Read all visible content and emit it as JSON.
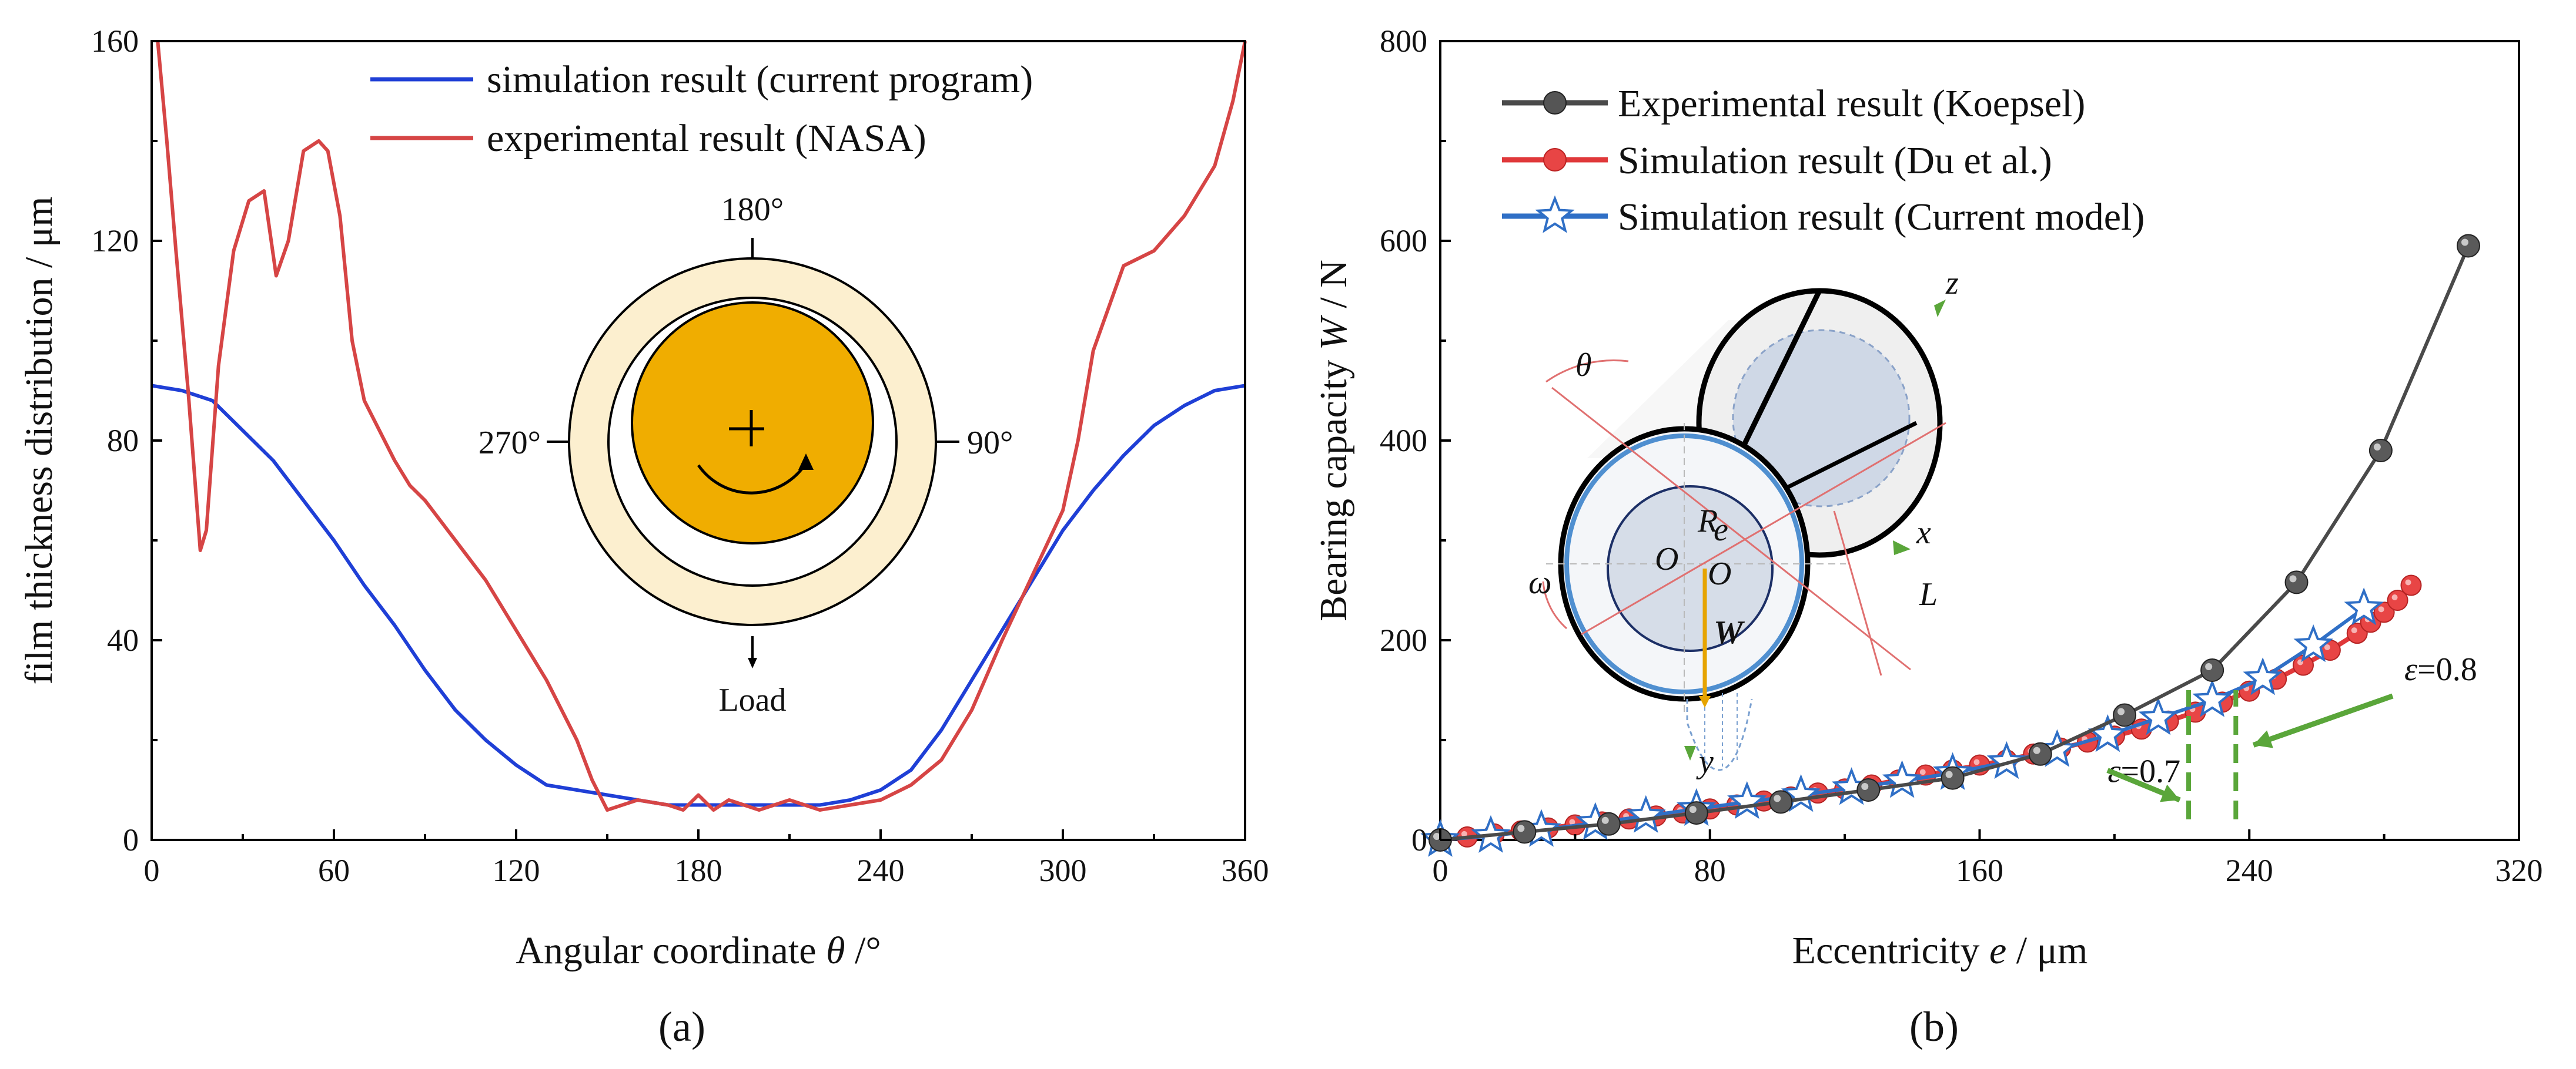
{
  "chart_data": [
    {
      "type": "line",
      "panel_label": "(a)",
      "xlabel_prefix": "Angular coordinate ",
      "xlabel_symbol": "θ",
      "xlabel_suffix": " /°",
      "ylabel": "film thickness distribution / μm",
      "xlim": [
        0,
        360
      ],
      "ylim": [
        0,
        160
      ],
      "xticks": [
        0,
        60,
        120,
        180,
        240,
        300,
        360
      ],
      "yticks": [
        0,
        40,
        80,
        120,
        160
      ],
      "legend_position": "top-right",
      "series": [
        {
          "name": "simulation result (current program)",
          "color": "#1f3fd6",
          "x": [
            0,
            10,
            20,
            30,
            40,
            50,
            60,
            70,
            80,
            90,
            100,
            110,
            120,
            130,
            140,
            150,
            160,
            170,
            180,
            190,
            200,
            210,
            220,
            230,
            240,
            250,
            260,
            270,
            280,
            290,
            300,
            310,
            320,
            330,
            340,
            350,
            360
          ],
          "y": [
            91,
            90,
            88,
            82,
            76,
            68,
            60,
            51,
            43,
            34,
            26,
            20,
            15,
            11,
            10,
            9,
            8,
            7,
            7,
            7,
            7,
            7,
            7,
            8,
            10,
            14,
            22,
            32,
            42,
            52,
            62,
            70,
            77,
            83,
            87,
            90,
            91
          ]
        },
        {
          "name": "experimental result (NASA)",
          "color": "#d64545",
          "x": [
            2,
            5,
            8,
            12,
            16,
            18,
            22,
            27,
            32,
            37,
            41,
            45,
            50,
            55,
            58,
            62,
            66,
            70,
            75,
            80,
            85,
            90,
            100,
            110,
            120,
            130,
            140,
            145,
            150,
            155,
            160,
            170,
            175,
            180,
            185,
            190,
            195,
            200,
            210,
            220,
            230,
            240,
            250,
            260,
            270,
            280,
            290,
            300,
            305,
            310,
            320,
            330,
            340,
            350,
            356,
            360
          ],
          "y": [
            160,
            140,
            118,
            90,
            58,
            62,
            95,
            118,
            128,
            130,
            113,
            120,
            138,
            140,
            138,
            125,
            100,
            88,
            82,
            76,
            71,
            68,
            60,
            52,
            42,
            32,
            20,
            12,
            6,
            7,
            8,
            7,
            6,
            9,
            6,
            8,
            7,
            6,
            8,
            6,
            7,
            8,
            11,
            16,
            26,
            40,
            53,
            66,
            80,
            98,
            115,
            118,
            125,
            135,
            148,
            160
          ]
        }
      ],
      "inset": {
        "top_label": "180°",
        "left_label": "270°",
        "right_label": "90°",
        "bottom_label": "Load",
        "outer_fill": "#fcefcf",
        "journal_fill": "#f0ad00"
      }
    },
    {
      "type": "line",
      "panel_label": "(b)",
      "xlabel_prefix": "Eccentricity ",
      "xlabel_symbol": "e",
      "xlabel_suffix": " / μm",
      "ylabel_prefix": "Bearing capacity ",
      "ylabel_symbol": "W",
      "ylabel_suffix": " / N",
      "xlim": [
        0,
        320
      ],
      "ylim": [
        0,
        800
      ],
      "xticks": [
        0,
        80,
        160,
        240,
        320
      ],
      "yticks": [
        0,
        200,
        400,
        600,
        800
      ],
      "legend_position": "top-left",
      "series": [
        {
          "name": "Experimental result (Koepsel)",
          "color": "#4a4a4a",
          "marker": "sphere",
          "x": [
            0,
            25,
            50,
            76,
            101,
            127,
            152,
            178,
            203,
            229,
            254,
            279,
            305
          ],
          "y": [
            0,
            8,
            16,
            27,
            38,
            50,
            62,
            86,
            125,
            170,
            258,
            390,
            595
          ]
        },
        {
          "name": "Simulation result (Du et al.)",
          "color": "#e0383a",
          "marker": "sphere",
          "x": [
            0,
            8,
            16,
            24,
            32,
            40,
            48,
            56,
            64,
            72,
            80,
            88,
            96,
            104,
            112,
            120,
            128,
            136,
            144,
            152,
            160,
            168,
            176,
            184,
            192,
            200,
            208,
            216,
            224,
            232,
            240,
            248,
            256,
            264,
            272,
            276,
            280,
            284,
            288
          ],
          "y": [
            0,
            3,
            6,
            9,
            12,
            15,
            18,
            21,
            24,
            27,
            31,
            35,
            39,
            43,
            47,
            51,
            55,
            60,
            65,
            70,
            75,
            80,
            86,
            92,
            98,
            104,
            111,
            119,
            128,
            138,
            149,
            161,
            175,
            190,
            207,
            218,
            228,
            240,
            255
          ]
        },
        {
          "name": "Simulation result (Current model)",
          "color": "#2f6fc6",
          "marker": "star",
          "x": [
            0,
            15,
            30,
            46,
            61,
            76,
            91,
            107,
            122,
            137,
            152,
            168,
            183,
            198,
            213,
            229,
            244,
            259,
            274
          ],
          "y": [
            0,
            4,
            10,
            17,
            24,
            31,
            38,
            45,
            52,
            59,
            67,
            78,
            90,
            105,
            122,
            140,
            162,
            195,
            232
          ]
        }
      ],
      "annotations": [
        {
          "text": "ε=0.7",
          "x": 198,
          "y": 58
        },
        {
          "text": "ε=0.8",
          "x": 286,
          "y": 160
        }
      ],
      "vlines": [
        222,
        236
      ],
      "inset": {
        "labels": [
          "θ",
          "ω",
          "R",
          "e",
          "O",
          "O",
          "W",
          "x",
          "y",
          "z",
          "L"
        ]
      }
    }
  ]
}
